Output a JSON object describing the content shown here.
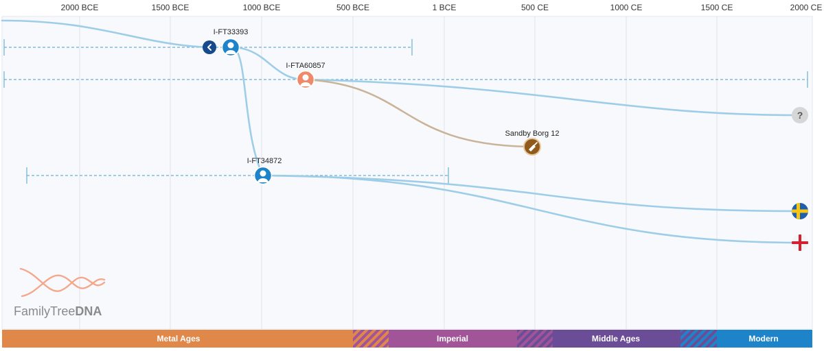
{
  "axis_ticks": [
    "2000 BCE",
    "1500 BCE",
    "1000 BCE",
    "500 BCE",
    "1 BCE",
    "500 CE",
    "1000 CE",
    "1500 CE",
    "2000 CE"
  ],
  "nodes": {
    "ft33393": "I-FT33393",
    "fta60857": "I-FTA60857",
    "ft34872": "I-FT34872",
    "sandby": "Sandby Borg 12"
  },
  "eras": [
    "Metal Ages",
    "Imperial",
    "Middle Ages",
    "Modern"
  ],
  "logo": {
    "name": "FamilyTree",
    "suffix": "DNA"
  },
  "unknown_marker": "?",
  "colors": {
    "branch": "#9ecde8",
    "ancient_branch": "#c9b49a",
    "metal": "#e0884a",
    "imperial": "#a25499",
    "middle": "#6a4d96",
    "modern": "#1e84c9",
    "node_blue": "#1e84c9",
    "node_orange": "#ee8a6a",
    "nav_blue": "#164a8c",
    "ancient_brown": "#8f5a1c",
    "sweden_blue": "#1f5fae",
    "sweden_yellow": "#f6c614",
    "england_red": "#d3202f",
    "logo_peach": "#f4a78a"
  },
  "icons": {
    "back": "chevron-left-icon",
    "person": "person-icon",
    "ancient": "trowel-icon",
    "unknown": "question-icon",
    "sweden": "sweden-flag-icon",
    "england": "england-flag-icon",
    "logo": "dna-helix-icon"
  }
}
